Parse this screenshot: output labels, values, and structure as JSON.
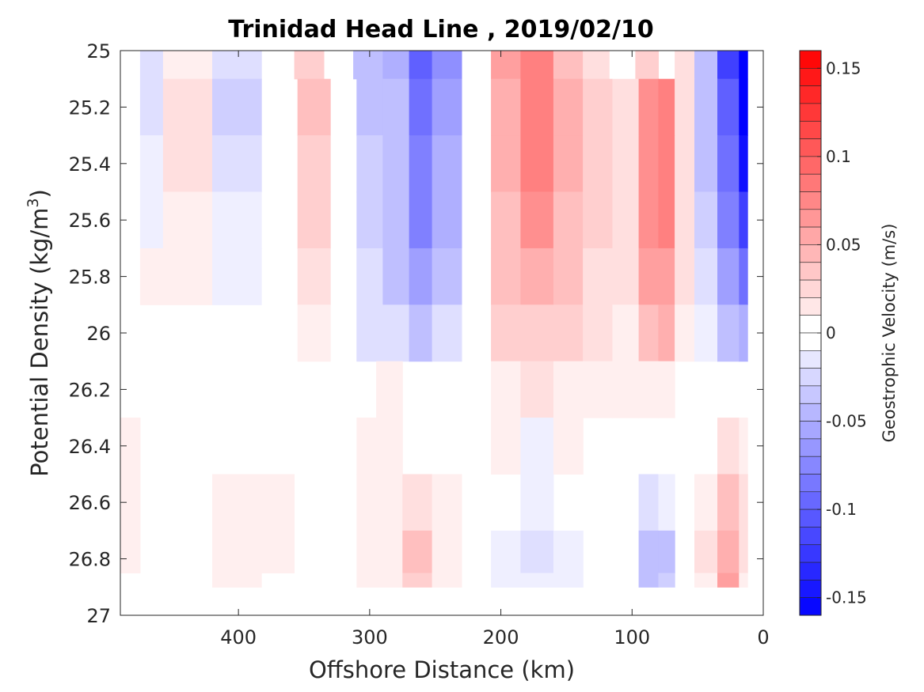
{
  "chart_data": {
    "type": "heatmap",
    "title": "Trinidad Head Line , 2019/02/10",
    "xlabel": "Offshore Distance (km)",
    "ylabel_main": "Potential Density (kg/m",
    "ylabel_sup": "3",
    "ylabel_end": ")",
    "xlim": [
      490,
      0
    ],
    "ylim": [
      25,
      27
    ],
    "x_ticks": [
      400,
      300,
      200,
      100,
      0
    ],
    "y_ticks": [
      25,
      25.2,
      25.4,
      25.6,
      25.8,
      26,
      26.2,
      26.4,
      26.6,
      26.8,
      27
    ],
    "colorbar": {
      "label": "Geostrophic Velocity (m/s)",
      "range": [
        -0.16,
        0.16
      ],
      "step": 0.01,
      "ticks": [
        0.15,
        0.1,
        0.05,
        0,
        -0.05,
        -0.1,
        -0.15
      ],
      "colors": {
        "positive": "#ff0000",
        "negative": "#0000ff",
        "zero": "#ffffff"
      }
    },
    "grid": false,
    "z_by_depth": [
      {
        "density": 25.0,
        "columns": [
          [
            480,
            -0.005
          ],
          [
            470,
            -0.02
          ],
          [
            445,
            0.01
          ],
          [
            395,
            -0.025
          ],
          [
            370,
            0
          ],
          [
            345,
            0.03
          ],
          [
            325,
            -0.005
          ],
          [
            300,
            -0.04
          ],
          [
            280,
            -0.05
          ],
          [
            260,
            -0.1
          ],
          [
            245,
            -0.07
          ],
          [
            215,
            0
          ],
          [
            200,
            0.06
          ],
          [
            170,
            0.08
          ],
          [
            150,
            0.04
          ],
          [
            125,
            0.02
          ],
          [
            110,
            0
          ],
          [
            85,
            0.03
          ],
          [
            75,
            0
          ],
          [
            60,
            0.02
          ],
          [
            45,
            -0.04
          ],
          [
            25,
            -0.12
          ],
          [
            12,
            -0.16
          ]
        ]
      },
      {
        "density": 25.2,
        "columns": [
          [
            480,
            -0.005
          ],
          [
            470,
            -0.02
          ],
          [
            445,
            0.015
          ],
          [
            395,
            -0.03
          ],
          [
            370,
            0
          ],
          [
            340,
            0.04
          ],
          [
            320,
            -0.005
          ],
          [
            300,
            -0.035
          ],
          [
            280,
            -0.045
          ],
          [
            260,
            -0.09
          ],
          [
            245,
            -0.06
          ],
          [
            215,
            0
          ],
          [
            200,
            0.05
          ],
          [
            170,
            0.08
          ],
          [
            150,
            0.05
          ],
          [
            125,
            0.03
          ],
          [
            105,
            0.015
          ],
          [
            85,
            0.07
          ],
          [
            75,
            0.08
          ],
          [
            60,
            0.02
          ],
          [
            45,
            -0.04
          ],
          [
            25,
            -0.1
          ],
          [
            12,
            -0.16
          ]
        ]
      },
      {
        "density": 25.4,
        "columns": [
          [
            480,
            -0.005
          ],
          [
            470,
            -0.015
          ],
          [
            445,
            0.015
          ],
          [
            395,
            -0.02
          ],
          [
            370,
            0
          ],
          [
            340,
            0.03
          ],
          [
            320,
            -0.005
          ],
          [
            300,
            -0.03
          ],
          [
            280,
            -0.04
          ],
          [
            260,
            -0.085
          ],
          [
            245,
            -0.055
          ],
          [
            215,
            0
          ],
          [
            200,
            0.05
          ],
          [
            170,
            0.075
          ],
          [
            150,
            0.045
          ],
          [
            125,
            0.03
          ],
          [
            105,
            0.015
          ],
          [
            85,
            0.07
          ],
          [
            75,
            0.08
          ],
          [
            60,
            0.02
          ],
          [
            45,
            -0.035
          ],
          [
            25,
            -0.09
          ],
          [
            12,
            -0.15
          ]
        ]
      },
      {
        "density": 25.6,
        "columns": [
          [
            480,
            -0.005
          ],
          [
            470,
            -0.01
          ],
          [
            445,
            0.01
          ],
          [
            395,
            -0.015
          ],
          [
            370,
            0
          ],
          [
            340,
            0.025
          ],
          [
            320,
            -0.005
          ],
          [
            300,
            -0.03
          ],
          [
            280,
            -0.04
          ],
          [
            260,
            -0.08
          ],
          [
            245,
            -0.05
          ],
          [
            215,
            0
          ],
          [
            200,
            0.04
          ],
          [
            170,
            0.065
          ],
          [
            150,
            0.04
          ],
          [
            125,
            0.025
          ],
          [
            105,
            0.015
          ],
          [
            85,
            0.065
          ],
          [
            75,
            0.075
          ],
          [
            60,
            0.02
          ],
          [
            45,
            -0.03
          ],
          [
            25,
            -0.08
          ],
          [
            12,
            -0.12
          ]
        ]
      },
      {
        "density": 25.8,
        "columns": [
          [
            480,
            0
          ],
          [
            470,
            0.005
          ],
          [
            445,
            0.01
          ],
          [
            395,
            -0.01
          ],
          [
            370,
            0
          ],
          [
            340,
            0.015
          ],
          [
            320,
            -0.005
          ],
          [
            300,
            -0.025
          ],
          [
            280,
            -0.035
          ],
          [
            260,
            -0.06
          ],
          [
            245,
            -0.035
          ],
          [
            215,
            0
          ],
          [
            200,
            0.035
          ],
          [
            170,
            0.05
          ],
          [
            150,
            0.035
          ],
          [
            125,
            0.02
          ],
          [
            105,
            0.015
          ],
          [
            85,
            0.055
          ],
          [
            75,
            0.06
          ],
          [
            60,
            0.015
          ],
          [
            45,
            -0.02
          ],
          [
            25,
            -0.06
          ],
          [
            12,
            -0.09
          ]
        ]
      },
      {
        "density": 26.0,
        "columns": [
          [
            480,
            0
          ],
          [
            470,
            0
          ],
          [
            445,
            0
          ],
          [
            395,
            0
          ],
          [
            370,
            0
          ],
          [
            340,
            0.005
          ],
          [
            320,
            -0.005
          ],
          [
            300,
            -0.02
          ],
          [
            280,
            -0.025
          ],
          [
            260,
            -0.04
          ],
          [
            245,
            -0.02
          ],
          [
            215,
            0
          ],
          [
            200,
            0.025
          ],
          [
            170,
            0.03
          ],
          [
            150,
            0.025
          ],
          [
            125,
            0.015
          ],
          [
            105,
            0.01
          ],
          [
            85,
            0.04
          ],
          [
            75,
            0.045
          ],
          [
            60,
            0.01
          ],
          [
            45,
            -0.01
          ],
          [
            25,
            -0.04
          ],
          [
            12,
            -0.05
          ]
        ]
      },
      {
        "density": 26.2,
        "columns": [
          [
            480,
            0
          ],
          [
            470,
            0
          ],
          [
            445,
            0
          ],
          [
            395,
            0
          ],
          [
            370,
            0
          ],
          [
            340,
            0
          ],
          [
            320,
            -0.005
          ],
          [
            300,
            0
          ],
          [
            290,
            0.005
          ],
          [
            260,
            0
          ],
          [
            245,
            0
          ],
          [
            215,
            0
          ],
          [
            200,
            0.01
          ],
          [
            170,
            0.015
          ],
          [
            150,
            0.01
          ],
          [
            125,
            0.01
          ],
          [
            105,
            0.005
          ],
          [
            85,
            0.01
          ],
          [
            75,
            0.01
          ],
          [
            60,
            0
          ],
          [
            45,
            0
          ],
          [
            25,
            0
          ],
          [
            12,
            0
          ]
        ]
      },
      {
        "density": 26.4,
        "columns": [
          [
            480,
            0.005
          ],
          [
            470,
            0
          ],
          [
            445,
            0
          ],
          [
            395,
            0
          ],
          [
            370,
            0
          ],
          [
            345,
            -0.005
          ],
          [
            320,
            0
          ],
          [
            300,
            0.005
          ],
          [
            290,
            0.01
          ],
          [
            260,
            0
          ],
          [
            245,
            0
          ],
          [
            215,
            0
          ],
          [
            200,
            0.005
          ],
          [
            170,
            -0.01
          ],
          [
            150,
            0.005
          ],
          [
            125,
            0
          ],
          [
            105,
            0
          ],
          [
            85,
            0
          ],
          [
            75,
            0
          ],
          [
            60,
            0
          ],
          [
            45,
            0
          ],
          [
            25,
            0.02
          ],
          [
            12,
            0.01
          ]
        ]
      },
      {
        "density": 26.6,
        "columns": [
          [
            480,
            0.005
          ],
          [
            470,
            0
          ],
          [
            445,
            0
          ],
          [
            395,
            0.005
          ],
          [
            370,
            0.005
          ],
          [
            345,
            -0.005
          ],
          [
            320,
            0
          ],
          [
            300,
            0.005
          ],
          [
            290,
            0.01
          ],
          [
            260,
            0.02
          ],
          [
            245,
            0.01
          ],
          [
            215,
            0
          ],
          [
            200,
            -0.005
          ],
          [
            170,
            -0.015
          ],
          [
            150,
            -0.005
          ],
          [
            125,
            -0.005
          ],
          [
            105,
            0
          ],
          [
            85,
            -0.02
          ],
          [
            75,
            -0.015
          ],
          [
            60,
            0
          ],
          [
            45,
            0.01
          ],
          [
            25,
            0.04
          ],
          [
            12,
            0.02
          ]
        ]
      },
      {
        "density": 26.8,
        "columns": [
          [
            480,
            0.005
          ],
          [
            470,
            0
          ],
          [
            445,
            -0.005
          ],
          [
            395,
            0.005
          ],
          [
            370,
            0.005
          ],
          [
            345,
            -0.005
          ],
          [
            320,
            0
          ],
          [
            300,
            0.005
          ],
          [
            290,
            0.01
          ],
          [
            260,
            0.035
          ],
          [
            245,
            0.01
          ],
          [
            215,
            0
          ],
          [
            200,
            -0.01
          ],
          [
            170,
            -0.02
          ],
          [
            150,
            -0.01
          ],
          [
            125,
            -0.005
          ],
          [
            105,
            0
          ],
          [
            85,
            -0.04
          ],
          [
            75,
            -0.035
          ],
          [
            60,
            0
          ],
          [
            45,
            0.015
          ],
          [
            25,
            0.05
          ],
          [
            12,
            0.02
          ]
        ]
      },
      {
        "density": 26.9,
        "columns": [
          [
            480,
            0
          ],
          [
            470,
            0
          ],
          [
            445,
            -0.005
          ],
          [
            395,
            0.005
          ],
          [
            370,
            0
          ],
          [
            345,
            -0.005
          ],
          [
            320,
            0
          ],
          [
            300,
            0.005
          ],
          [
            290,
            0.01
          ],
          [
            260,
            0.03
          ],
          [
            245,
            0.005
          ],
          [
            215,
            0
          ],
          [
            200,
            -0.01
          ],
          [
            170,
            -0.015
          ],
          [
            150,
            -0.01
          ],
          [
            125,
            -0.005
          ],
          [
            105,
            0
          ],
          [
            85,
            -0.045
          ],
          [
            75,
            -0.03
          ],
          [
            60,
            0
          ],
          [
            45,
            0.01
          ],
          [
            25,
            0.06
          ],
          [
            12,
            0.01
          ]
        ]
      }
    ]
  }
}
